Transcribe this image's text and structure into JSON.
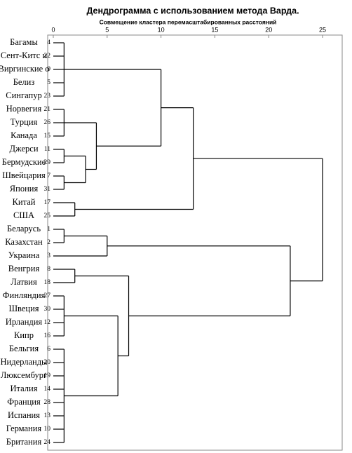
{
  "chart_data": {
    "type": "dendrogram",
    "title": "Дендрограмма с использованием метода Варда.",
    "subtitle": "Совмещение кластера перемасштабированных расстояний",
    "xlim": [
      0,
      25
    ],
    "xticks": [
      0,
      5,
      10,
      15,
      20,
      25
    ],
    "color": "#000000",
    "tree": {
      "height": 25,
      "children": [
        {
          "height": 13,
          "children": [
            {
              "height": 10,
              "children": [
                {
                  "height": 1,
                  "children": [
                    {
                      "label": "Багамы",
                      "case": 4
                    },
                    {
                      "label": "Сент-Китс и",
                      "case": 22
                    },
                    {
                      "label": "Виргинские о",
                      "case": 9
                    },
                    {
                      "label": "Белиз",
                      "case": 5
                    },
                    {
                      "label": "Сингапур",
                      "case": 23
                    }
                  ]
                },
                {
                  "height": 4,
                  "children": [
                    {
                      "height": 1,
                      "children": [
                        {
                          "label": "Норвегия",
                          "case": 21
                        },
                        {
                          "label": "Турция",
                          "case": 26
                        },
                        {
                          "label": "Канада",
                          "case": 15
                        }
                      ]
                    },
                    {
                      "height": 3,
                      "children": [
                        {
                          "height": 1,
                          "children": [
                            {
                              "label": "Джерси",
                              "case": 11
                            },
                            {
                              "label": "Бермудские",
                              "case": 29
                            }
                          ]
                        },
                        {
                          "height": 1,
                          "children": [
                            {
                              "label": "Швейцария",
                              "case": 7
                            },
                            {
                              "label": "Япония",
                              "case": 31
                            }
                          ]
                        }
                      ]
                    }
                  ]
                }
              ]
            },
            {
              "height": 2,
              "children": [
                {
                  "label": "Китай",
                  "case": 17
                },
                {
                  "label": "США",
                  "case": 25
                }
              ]
            }
          ]
        },
        {
          "height": 22,
          "children": [
            {
              "height": 5,
              "children": [
                {
                  "height": 1,
                  "children": [
                    {
                      "label": "Беларусь",
                      "case": 1
                    },
                    {
                      "label": "Казахстан",
                      "case": 2
                    }
                  ]
                },
                {
                  "label": "Украина",
                  "case": 3
                }
              ]
            },
            {
              "height": 7,
              "children": [
                {
                  "height": 2,
                  "children": [
                    {
                      "label": "Венгрия",
                      "case": 8
                    },
                    {
                      "label": "Латвия",
                      "case": 18
                    }
                  ]
                },
                {
                  "height": 6,
                  "children": [
                    {
                      "height": 1,
                      "children": [
                        {
                          "label": "Финляндия",
                          "case": 27
                        },
                        {
                          "label": "Швеция",
                          "case": 30
                        },
                        {
                          "label": "Ирландия",
                          "case": 12
                        },
                        {
                          "label": "Кипр",
                          "case": 16
                        }
                      ]
                    },
                    {
                      "height": 1,
                      "children": [
                        {
                          "label": "Бельгия",
                          "case": 6
                        },
                        {
                          "label": "Нидерланды",
                          "case": 20
                        },
                        {
                          "label": "Люксембург",
                          "case": 19
                        },
                        {
                          "label": "Италия",
                          "case": 14
                        },
                        {
                          "label": "Франция",
                          "case": 28
                        },
                        {
                          "label": "Испания",
                          "case": 13
                        },
                        {
                          "label": "Германия",
                          "case": 10
                        },
                        {
                          "label": "Британия",
                          "case": 24
                        }
                      ]
                    }
                  ]
                }
              ]
            }
          ]
        }
      ]
    }
  }
}
